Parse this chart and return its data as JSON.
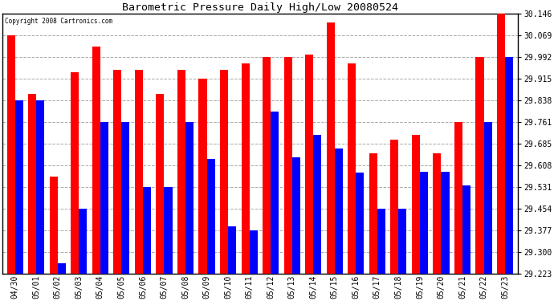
{
  "title": "Barometric Pressure Daily High/Low 20080524",
  "copyright": "Copyright 2008 Cartronics.com",
  "categories": [
    "04/30",
    "05/01",
    "05/02",
    "05/03",
    "05/04",
    "05/05",
    "05/06",
    "05/07",
    "05/08",
    "05/09",
    "05/10",
    "05/11",
    "05/12",
    "05/13",
    "05/14",
    "05/15",
    "05/16",
    "05/17",
    "05/18",
    "05/19",
    "05/20",
    "05/21",
    "05/22",
    "05/23"
  ],
  "highs": [
    30.069,
    29.861,
    29.569,
    29.938,
    30.03,
    29.946,
    29.946,
    29.861,
    29.946,
    29.915,
    29.946,
    29.969,
    29.992,
    29.992,
    30.0,
    30.115,
    29.969,
    29.65,
    29.7,
    29.715,
    29.65,
    29.761,
    29.992,
    30.146
  ],
  "lows": [
    29.838,
    29.838,
    29.261,
    29.454,
    29.761,
    29.761,
    29.531,
    29.531,
    29.761,
    29.631,
    29.393,
    29.377,
    29.8,
    29.638,
    29.715,
    29.669,
    29.584,
    29.454,
    29.454,
    29.585,
    29.585,
    29.538,
    29.761,
    29.992
  ],
  "high_color": "#ff0000",
  "low_color": "#0000ff",
  "bg_color": "#ffffff",
  "grid_color": "#aaaaaa",
  "ymin": 29.223,
  "ymax": 30.146,
  "yticks": [
    29.223,
    29.3,
    29.377,
    29.454,
    29.531,
    29.608,
    29.685,
    29.761,
    29.838,
    29.915,
    29.992,
    30.069,
    30.146
  ],
  "bar_width": 0.38,
  "figwidth": 6.9,
  "figheight": 3.75,
  "dpi": 100
}
